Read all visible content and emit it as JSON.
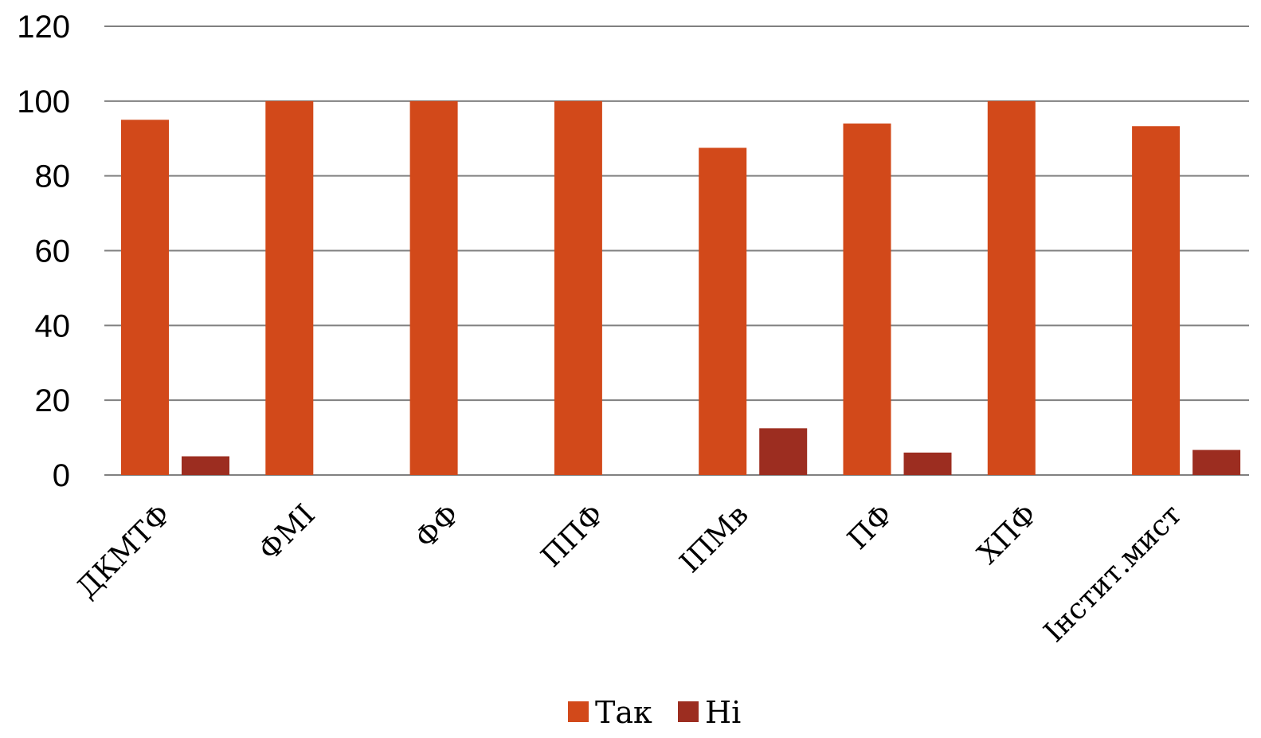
{
  "chart_data": {
    "type": "bar",
    "categories": [
      "ДКМТФ",
      "ФМІ",
      "ФФ",
      "ППФ",
      "ІПМв",
      "ПФ",
      "ХПФ",
      "Інстит.мист"
    ],
    "series": [
      {
        "name": "Так",
        "values": [
          95,
          100,
          100,
          100,
          87.5,
          94,
          100,
          93.3
        ],
        "color": "#d2491a"
      },
      {
        "name": "Ні",
        "values": [
          5,
          0,
          0,
          0,
          12.5,
          6,
          0,
          6.7
        ],
        "color": "#9c2d20"
      }
    ],
    "title": "",
    "xlabel": "",
    "ylabel": "",
    "ylim": [
      0,
      120
    ],
    "yticks": [
      "0",
      "20",
      "40",
      "60",
      "80",
      "100",
      "120"
    ],
    "grid": true,
    "legend_position": "bottom"
  }
}
